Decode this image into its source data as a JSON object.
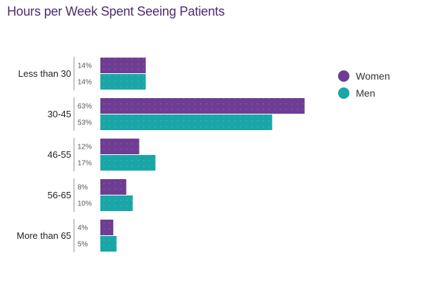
{
  "chart_data": {
    "type": "bar",
    "orientation": "horizontal",
    "title": "Hours per Week Spent Seeing Patients",
    "categories": [
      "Less than 30",
      "30-45",
      "46-55",
      "56-65",
      "More than 65"
    ],
    "series": [
      {
        "name": "Women",
        "color": "#6e3d93",
        "values": [
          14,
          63,
          12,
          8,
          4
        ],
        "labels": [
          "14%",
          "63%",
          "12%",
          "8%",
          "4%"
        ]
      },
      {
        "name": "Men",
        "color": "#1aa6a6",
        "values": [
          14,
          53,
          17,
          10,
          5
        ],
        "labels": [
          "14%",
          "53%",
          "17%",
          "10%",
          "5%"
        ]
      }
    ],
    "xlim": [
      0,
      63
    ],
    "grid": false,
    "legend": "right"
  }
}
